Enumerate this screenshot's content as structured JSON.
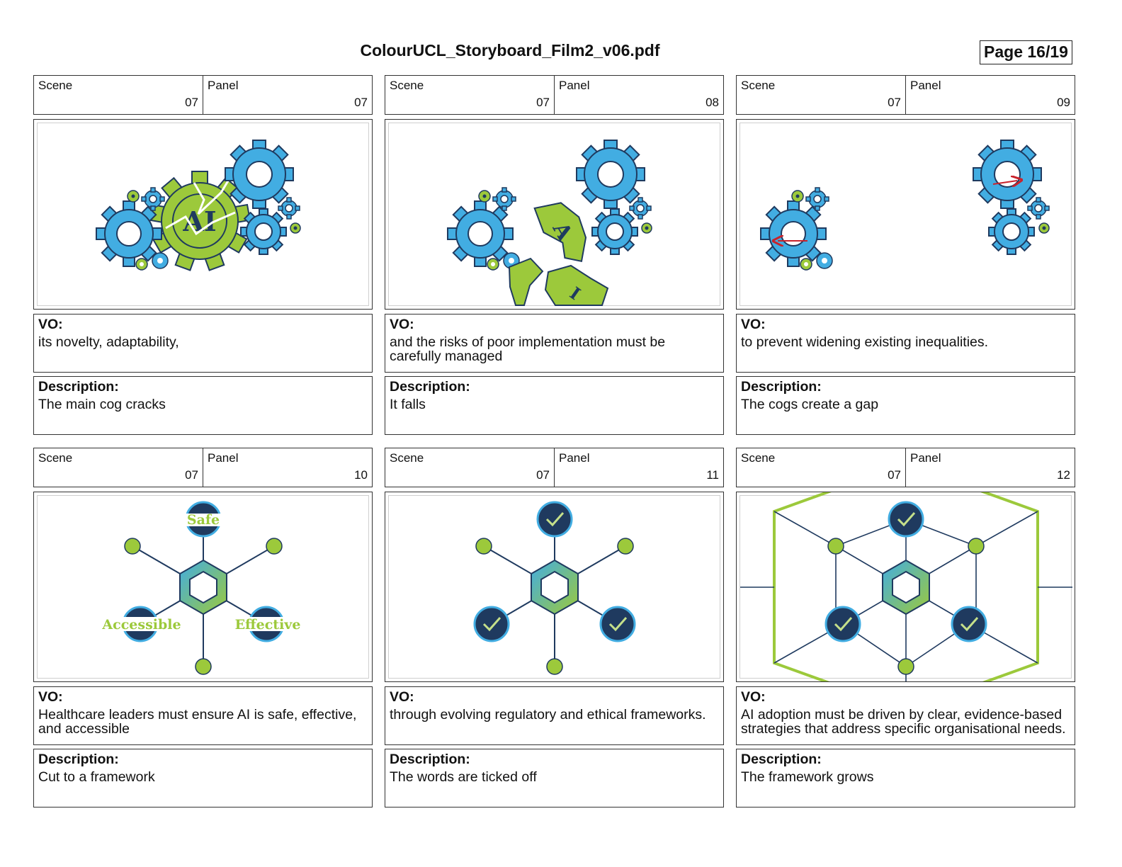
{
  "header": {
    "title": "ColourUCL_Storyboard_Film2_v06.pdf",
    "page": "Page 16/19"
  },
  "labels": {
    "scene": "Scene",
    "panel": "Panel",
    "vo": "VO:",
    "description": "Description:"
  },
  "panels": [
    {
      "scene": "07",
      "panel": "07",
      "vo": "its novelty, adaptability,",
      "description": "The main cog cracks",
      "icon": "gears-cracked-ai"
    },
    {
      "scene": "07",
      "panel": "08",
      "vo": "and the risks of poor implementation must be carefully managed",
      "description": "It falls",
      "icon": "gears-falling-ai"
    },
    {
      "scene": "07",
      "panel": "09",
      "vo": "to prevent widening existing inequalities.",
      "description": "The cogs create a gap",
      "icon": "gears-gap"
    },
    {
      "scene": "07",
      "panel": "10",
      "vo": "Healthcare leaders must ensure AI is safe, effective, and accessible",
      "description": "Cut to a framework",
      "icon": "framework-words"
    },
    {
      "scene": "07",
      "panel": "11",
      "vo": "through evolving regulatory and ethical frameworks.",
      "description": "The words are ticked off",
      "icon": "framework-ticks"
    },
    {
      "scene": "07",
      "panel": "12",
      "vo": "AI adoption must be driven by clear, evidence-based strategies that address specific organisational needs.",
      "description": "The framework grows",
      "icon": "framework-grows"
    }
  ],
  "illustration": {
    "ai_label": "AI",
    "framework_words": {
      "top": "Safe",
      "left": "Accessible",
      "right": "Effective"
    }
  },
  "colors": {
    "cog_blue": "#42ade2",
    "cog_green": "#9cc93b",
    "navy": "#1f3a5f",
    "arrow_red": "#c8232c"
  }
}
